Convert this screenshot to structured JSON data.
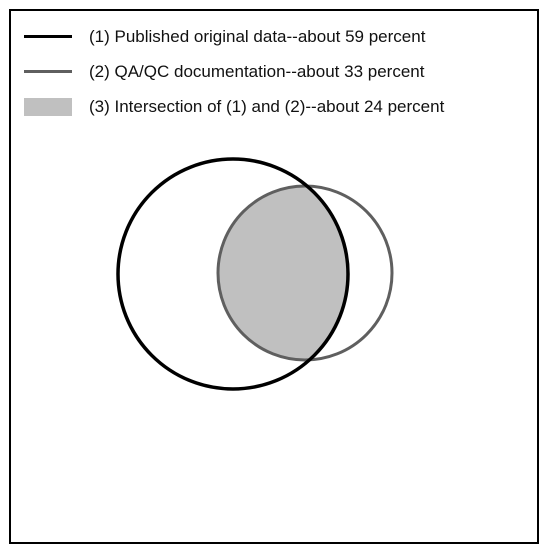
{
  "legend": [
    {
      "label": "(1) Published original data--about 59 percent",
      "color": "#000000",
      "kind": "line"
    },
    {
      "label": "(2) QA/QC documentation--about 33 percent",
      "color": "#5f5f5f",
      "kind": "line"
    },
    {
      "label": "(3) Intersection of (1) and (2)--about 24 percent",
      "color": "#c0c0c0",
      "kind": "fill"
    }
  ],
  "venn": {
    "set1_color": "#000000",
    "set2_color": "#5f5f5f",
    "intersection_color": "#c0c0c0"
  }
}
